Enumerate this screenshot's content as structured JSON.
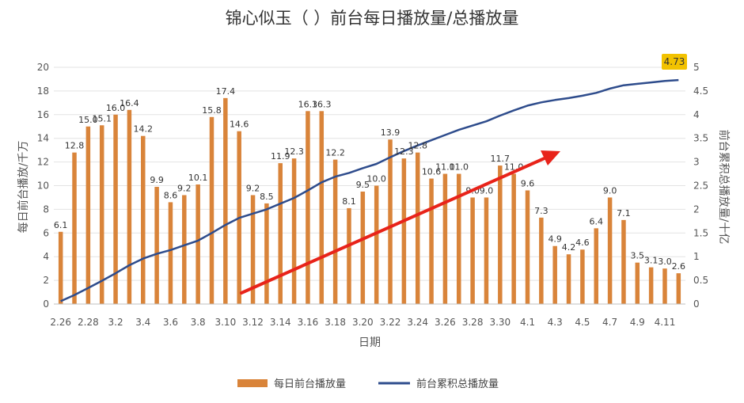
{
  "chart_data": {
    "type": "bar",
    "title": "锦心似玉（ ）前台每日播放量/总播放量",
    "xlabel": "日期",
    "ylabel_left": "每日前台播放/千万",
    "ylabel_right": "前台累积总播放量/十亿",
    "ylim_left": [
      0,
      20
    ],
    "ylim_right": [
      0,
      5
    ],
    "left_ticks": [
      "0",
      "2",
      "4",
      "6",
      "8",
      "10",
      "12",
      "14",
      "16",
      "18",
      "20"
    ],
    "right_ticks": [
      "0",
      "0.5",
      "1",
      "1.5",
      "2",
      "2.5",
      "3",
      "3.5",
      "4",
      "4.5",
      "5"
    ],
    "x_tick_labels": [
      "2.26",
      "2.28",
      "3.2",
      "3.4",
      "3.6",
      "3.8",
      "3.10",
      "3.12",
      "3.14",
      "3.16",
      "3.18",
      "3.20",
      "3.22",
      "3.24",
      "3.26",
      "3.28",
      "3.30",
      "4.1",
      "4.3",
      "4.5",
      "4.7",
      "4.9",
      "4.11"
    ],
    "grid": true,
    "legend_position": "bottom",
    "series": [
      {
        "name": "每日前台播放量",
        "type": "bar",
        "axis": "left",
        "color": "#D9843A",
        "values": [
          6.1,
          12.8,
          15.0,
          15.1,
          16.0,
          16.4,
          14.2,
          9.9,
          8.6,
          9.2,
          10.1,
          15.8,
          17.4,
          14.6,
          9.2,
          8.5,
          11.9,
          12.3,
          16.3,
          16.3,
          12.2,
          8.1,
          9.5,
          10.0,
          13.9,
          12.3,
          12.8,
          10.6,
          11.0,
          11.0,
          9.0,
          9.0,
          11.7,
          11.0,
          9.6,
          7.3,
          4.9,
          4.2,
          4.6,
          6.4,
          9.0,
          7.1,
          3.5,
          3.1,
          3.0,
          2.6
        ],
        "labels": [
          "6.1",
          "12.8",
          "15.0",
          "15.1",
          "16.0",
          "16.4",
          "14.2",
          "9.9",
          "8.6",
          "9.2",
          "10.1",
          "15.8",
          "17.4",
          "14.6",
          "9.2",
          "8.5",
          "11.9",
          "12.3",
          "16.3",
          "16.3",
          "12.2",
          "8.1",
          "9.5",
          "10.0",
          "13.9",
          "12.3",
          "12.8",
          "10.6",
          "11.0",
          "11.0",
          "9.0",
          "9.0",
          "11.7",
          "11.0",
          "9.6",
          "7.3",
          "4.9",
          "4.2",
          "4.6",
          "6.4",
          "9.0",
          "7.1",
          "3.5",
          "3.1",
          "3.0",
          "2.6"
        ]
      },
      {
        "name": "前台累积总播放量",
        "type": "line",
        "axis": "right",
        "color": "#2E4C8C",
        "values": [
          0.06,
          0.19,
          0.34,
          0.49,
          0.65,
          0.82,
          0.96,
          1.06,
          1.14,
          1.24,
          1.34,
          1.5,
          1.67,
          1.82,
          1.91,
          2.0,
          2.12,
          2.24,
          2.4,
          2.57,
          2.69,
          2.77,
          2.87,
          2.96,
          3.1,
          3.23,
          3.35,
          3.46,
          3.57,
          3.68,
          3.77,
          3.86,
          3.98,
          4.09,
          4.19,
          4.26,
          4.31,
          4.35,
          4.4,
          4.46,
          4.55,
          4.62,
          4.65,
          4.68,
          4.71,
          4.73
        ]
      }
    ],
    "annotations": [
      {
        "text": "4.73",
        "highlight_color": "#F2C200"
      }
    ]
  }
}
